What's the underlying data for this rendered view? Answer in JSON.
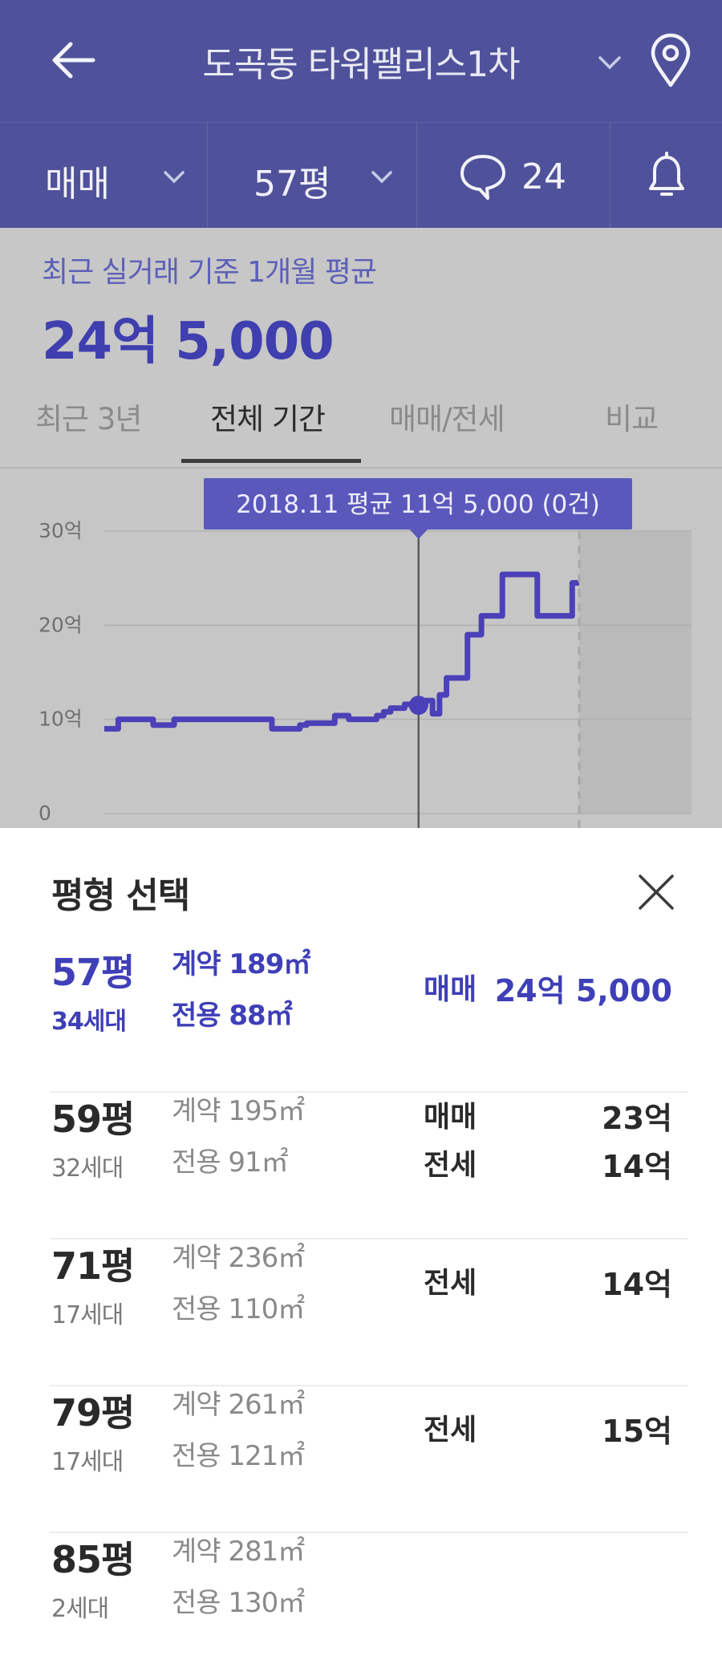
{
  "header": {
    "title": "도곡동 타워팰리스1차",
    "filters": {
      "deal_type": "매매",
      "size": "57평",
      "comment_count": "24"
    }
  },
  "summary": {
    "label": "최근 실거래 기준 1개월 평균",
    "value": "24억 5,000"
  },
  "tabs": [
    {
      "label": "최근 3년",
      "active": false
    },
    {
      "label": "전체 기간",
      "active": true
    },
    {
      "label": "매매/전세",
      "active": false
    },
    {
      "label": "비교",
      "active": false
    }
  ],
  "chart_data": {
    "type": "line",
    "tooltip": "2018.11 평균 11억 5,000 (0건)",
    "y_ticks": [
      "30억",
      "20억",
      "10억",
      "0"
    ],
    "ylim": [
      0,
      30
    ],
    "grid": true,
    "highlight": {
      "x_index": 45,
      "y": 11.5
    },
    "series": [
      {
        "color": "#4c40b8",
        "values": [
          9,
          9,
          10,
          10,
          10,
          10,
          10,
          9.4,
          9.4,
          9.4,
          10,
          10,
          10,
          10,
          10,
          10,
          10,
          10,
          10,
          10,
          10,
          10,
          10,
          10,
          9,
          9,
          9,
          9,
          9.4,
          9.6,
          9.6,
          9.6,
          9.6,
          10.4,
          10.4,
          10,
          10,
          10,
          10,
          10.4,
          10.8,
          11.2,
          11.2,
          11.6,
          11.4,
          11.5,
          12,
          10.6,
          12.6,
          14.4,
          14.4,
          14.4,
          19,
          19,
          21,
          21,
          21,
          25.4,
          25.4,
          25.4,
          25.4,
          25.4,
          21,
          21,
          21,
          21,
          21,
          24.5,
          24.5
        ]
      }
    ]
  },
  "sheet": {
    "title": "평형 선택",
    "rows": [
      {
        "pyeong": "57평",
        "households": "34세대",
        "contract_area": "계약 189㎡",
        "exclusive_area": "전용 88㎡",
        "selected": true,
        "trades": [
          {
            "type": "매매",
            "price": "24억 5,000"
          }
        ]
      },
      {
        "pyeong": "59평",
        "households": "32세대",
        "contract_area": "계약 195㎡",
        "exclusive_area": "전용 91㎡",
        "selected": false,
        "trades": [
          {
            "type": "매매",
            "price": "23억"
          },
          {
            "type": "전세",
            "price": "14억"
          }
        ]
      },
      {
        "pyeong": "71평",
        "households": "17세대",
        "contract_area": "계약 236㎡",
        "exclusive_area": "전용 110㎡",
        "selected": false,
        "trades": [
          {
            "type": "전세",
            "price": "14억"
          }
        ]
      },
      {
        "pyeong": "79평",
        "households": "17세대",
        "contract_area": "계약 261㎡",
        "exclusive_area": "전용 121㎡",
        "selected": false,
        "trades": [
          {
            "type": "전세",
            "price": "15억"
          }
        ]
      },
      {
        "pyeong": "85평",
        "households": "2세대",
        "contract_area": "계약 281㎡",
        "exclusive_area": "전용 130㎡",
        "selected": false,
        "trades": []
      }
    ]
  },
  "colors": {
    "header_bg": "#4f529a",
    "accent": "#3f3fb8",
    "overlay_gray": "#c6c6c6"
  },
  "icons": [
    "back-arrow-icon",
    "chevron-down-icon",
    "location-pin-icon",
    "chat-bubble-icon",
    "bell-icon",
    "close-icon"
  ]
}
